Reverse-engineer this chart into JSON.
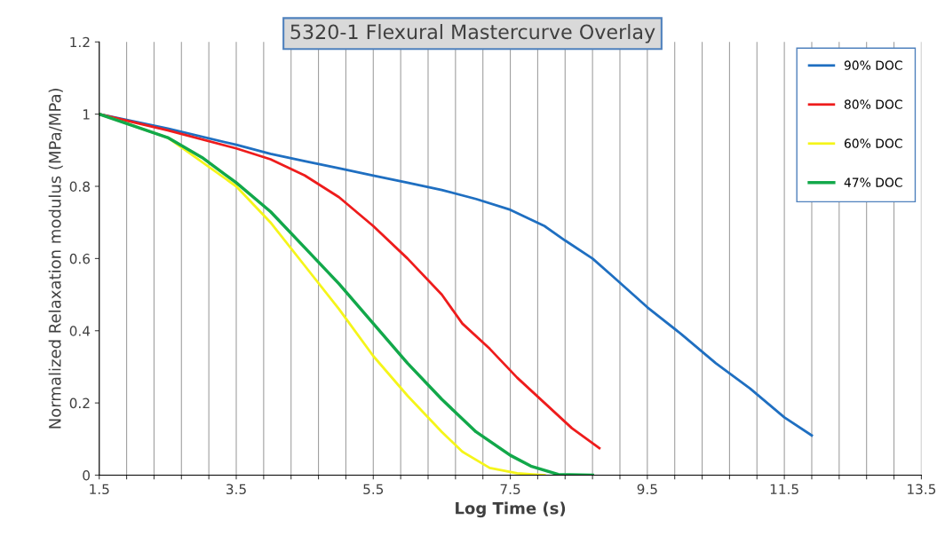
{
  "chart_data": {
    "type": "line",
    "title": "5320-1 Flexural Mastercurve Overlay",
    "xlabel": "Log Time (s)",
    "ylabel": "Normalized Relaxation modulus (MPa/MPa)",
    "xlim": [
      1.5,
      13.5
    ],
    "xticks": [
      1.5,
      {
        "value": 1.9,
        "label": null
      },
      {
        "value": 2.3,
        "label": null
      },
      {
        "value": 2.7,
        "label": null
      },
      {
        "value": 3.1,
        "label": null
      },
      3.5,
      {
        "value": 3.9,
        "label": null
      },
      {
        "value": 4.3,
        "label": null
      },
      {
        "value": 4.7,
        "label": null
      },
      {
        "value": 5.1,
        "label": null
      },
      5.5,
      {
        "value": 5.9,
        "label": null
      },
      {
        "value": 6.3,
        "label": null
      },
      {
        "value": 6.7,
        "label": null
      },
      {
        "value": 7.1,
        "label": null
      },
      7.5,
      {
        "value": 7.9,
        "label": null
      },
      {
        "value": 8.3,
        "label": null
      },
      {
        "value": 8.7,
        "label": null
      },
      {
        "value": 9.1,
        "label": null
      },
      9.5,
      {
        "value": 9.9,
        "label": null
      },
      {
        "value": 10.3,
        "label": null
      },
      {
        "value": 10.7,
        "label": null
      },
      {
        "value": 11.1,
        "label": null
      },
      11.5,
      {
        "value": 11.9,
        "label": null
      },
      {
        "value": 12.3,
        "label": null
      },
      {
        "value": 12.7,
        "label": null
      },
      {
        "value": 13.1,
        "label": null
      },
      13.5
    ],
    "ylim": [
      0,
      1.2
    ],
    "yticks": [
      0,
      0.2,
      0.4,
      0.6,
      0.8,
      1,
      1.2
    ],
    "grid": "x",
    "legend": "right",
    "series": [
      {
        "name": "90% DOC",
        "color": "#1f6fc1",
        "x": [
          1.5,
          2.5,
          3.5,
          4.0,
          4.5,
          5.0,
          5.5,
          6.0,
          6.5,
          7.0,
          7.5,
          8.0,
          8.3,
          8.7,
          9.0,
          9.5,
          10.0,
          10.5,
          11.0,
          11.5,
          11.9
        ],
        "values": [
          1.0,
          0.96,
          0.915,
          0.89,
          0.87,
          0.85,
          0.83,
          0.81,
          0.79,
          0.765,
          0.735,
          0.69,
          0.65,
          0.6,
          0.55,
          0.465,
          0.39,
          0.31,
          0.24,
          0.16,
          0.11
        ]
      },
      {
        "name": "80% DOC",
        "color": "#ee1c1c",
        "x": [
          1.5,
          2.5,
          3.5,
          4.0,
          4.5,
          5.0,
          5.5,
          6.0,
          6.5,
          6.8,
          7.2,
          7.6,
          8.0,
          8.4,
          8.8
        ],
        "values": [
          1.0,
          0.955,
          0.905,
          0.875,
          0.83,
          0.77,
          0.69,
          0.6,
          0.5,
          0.42,
          0.35,
          0.27,
          0.2,
          0.13,
          0.075
        ]
      },
      {
        "name": "60% DOC",
        "color": "#f5f51a",
        "x": [
          1.5,
          2.5,
          3.5,
          4.0,
          4.5,
          5.0,
          5.5,
          6.0,
          6.5,
          6.8,
          7.2,
          7.6,
          8.0
        ],
        "values": [
          1.0,
          0.935,
          0.8,
          0.7,
          0.58,
          0.46,
          0.33,
          0.22,
          0.12,
          0.065,
          0.02,
          0.005,
          0.0
        ]
      },
      {
        "name": "47% DOC",
        "color": "#12a84a",
        "x": [
          1.5,
          2.5,
          3.0,
          3.5,
          4.0,
          4.5,
          5.0,
          5.5,
          6.0,
          6.5,
          7.0,
          7.5,
          7.8,
          8.2,
          8.7
        ],
        "values": [
          1.0,
          0.935,
          0.88,
          0.81,
          0.73,
          0.63,
          0.53,
          0.42,
          0.31,
          0.21,
          0.12,
          0.055,
          0.025,
          0.002,
          0.0
        ]
      }
    ]
  }
}
